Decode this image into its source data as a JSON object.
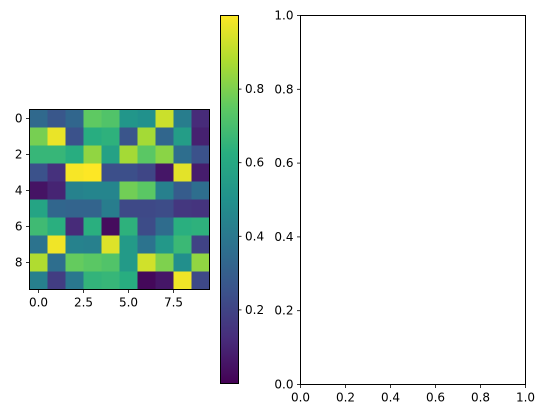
{
  "chart_data": [
    {
      "type": "heatmap",
      "title": "",
      "xlabel": "",
      "ylabel": "",
      "x_ticks": [
        "0.0",
        "2.5",
        "5.0",
        "7.5"
      ],
      "x_tick_values": [
        0,
        2.5,
        5,
        7.5
      ],
      "y_ticks": [
        "0",
        "2",
        "4",
        "6",
        "8"
      ],
      "y_tick_values": [
        0,
        2,
        4,
        6,
        8
      ],
      "extent": {
        "x": [
          -0.5,
          9.5
        ],
        "y": [
          -0.5,
          9.5
        ]
      },
      "colormap": "viridis",
      "values": [
        [
          0.34,
          0.27,
          0.33,
          0.75,
          0.72,
          0.52,
          0.5,
          0.92,
          0.42,
          0.12
        ],
        [
          0.79,
          0.97,
          0.25,
          0.62,
          0.64,
          0.26,
          0.86,
          0.33,
          0.55,
          0.09
        ],
        [
          0.66,
          0.66,
          0.62,
          0.83,
          0.57,
          0.86,
          0.74,
          0.82,
          0.36,
          0.25
        ],
        [
          0.25,
          0.14,
          0.99,
          1.0,
          0.24,
          0.24,
          0.21,
          0.06,
          0.96,
          0.08
        ],
        [
          0.05,
          0.1,
          0.44,
          0.45,
          0.45,
          0.78,
          0.74,
          0.43,
          0.29,
          0.36
        ],
        [
          0.58,
          0.33,
          0.32,
          0.32,
          0.42,
          0.22,
          0.22,
          0.23,
          0.16,
          0.15
        ],
        [
          0.68,
          0.63,
          0.12,
          0.63,
          0.03,
          0.64,
          0.23,
          0.35,
          0.63,
          0.64
        ],
        [
          0.38,
          0.98,
          0.44,
          0.43,
          0.95,
          0.54,
          0.38,
          0.53,
          0.67,
          0.2
        ],
        [
          0.88,
          0.36,
          0.76,
          0.74,
          0.72,
          0.54,
          0.93,
          0.8,
          0.49,
          0.83
        ],
        [
          0.43,
          0.18,
          0.4,
          0.65,
          0.66,
          0.62,
          0.02,
          0.06,
          0.98,
          0.22
        ]
      ]
    },
    {
      "type": "colorbar",
      "colormap": "viridis",
      "range": [
        0,
        1
      ],
      "ticks": [
        "0.2",
        "0.4",
        "0.6",
        "0.8"
      ],
      "tick_values": [
        0.2,
        0.4,
        0.6,
        0.8
      ],
      "right_ticks": [
        "0.0",
        "0.2",
        "0.4",
        "0.6",
        "0.8",
        "1.0"
      ],
      "right_tick_values": [
        0,
        0.2,
        0.4,
        0.6,
        0.8,
        1.0
      ]
    },
    {
      "type": "line",
      "title": "",
      "xlabel": "",
      "ylabel": "",
      "series": [],
      "xlim": [
        0,
        1
      ],
      "ylim": [
        0,
        1
      ],
      "x_ticks": [
        "0.0",
        "0.2",
        "0.4",
        "0.6",
        "0.8",
        "1.0"
      ],
      "x_tick_values": [
        0,
        0.2,
        0.4,
        0.6,
        0.8,
        1.0
      ],
      "y_ticks": [
        "0.0",
        "0.2",
        "0.4",
        "0.6",
        "0.8",
        "1.0"
      ],
      "y_tick_values": [
        0,
        0.2,
        0.4,
        0.6,
        0.8,
        1.0
      ],
      "grid": false
    }
  ]
}
